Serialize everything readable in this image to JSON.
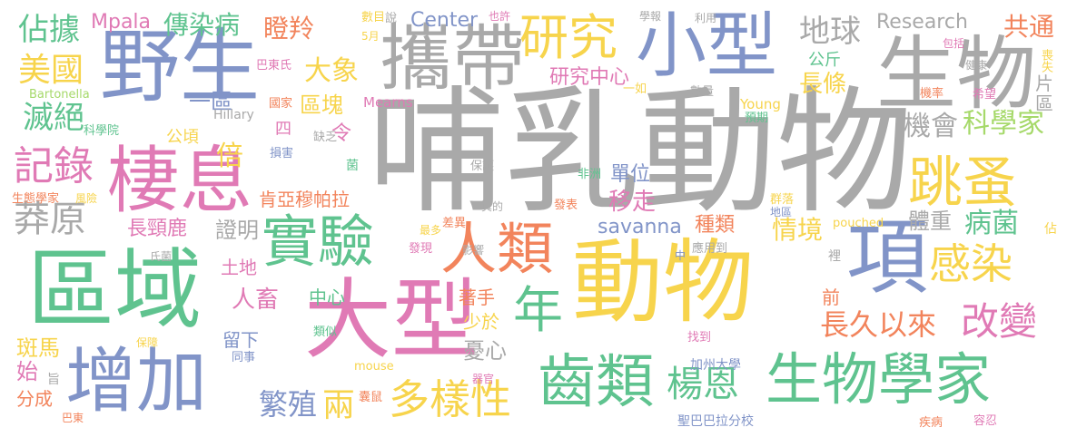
{
  "palette": {
    "gray": "#a9a9a9",
    "yellow": "#f7d44c",
    "green": "#5fc38f",
    "blue": "#8194c8",
    "pink": "#e07ab5",
    "orange": "#f2845c",
    "lime": "#a6d96a"
  },
  "words": [
    {
      "id": "w1",
      "text": "哺乳動物"
    },
    {
      "id": "w2",
      "text": "動物"
    },
    {
      "id": "w3",
      "text": "大型"
    },
    {
      "id": "w4",
      "text": "區域"
    },
    {
      "id": "w5",
      "text": "野生"
    },
    {
      "id": "w6",
      "text": "攜帶"
    },
    {
      "id": "w7",
      "text": "小型"
    },
    {
      "id": "w8",
      "text": "生物"
    },
    {
      "id": "w9",
      "text": "棲息"
    },
    {
      "id": "w10",
      "text": "增加"
    },
    {
      "id": "w11",
      "text": "實驗"
    },
    {
      "id": "w12",
      "text": "人類"
    },
    {
      "id": "w13",
      "text": "項"
    },
    {
      "id": "w14",
      "text": "齒類"
    },
    {
      "id": "w15",
      "text": "生物學家"
    },
    {
      "id": "w16",
      "text": "研究"
    },
    {
      "id": "w17",
      "text": "跳蚤"
    },
    {
      "id": "w18",
      "text": "年"
    },
    {
      "id": "w19",
      "text": "感染"
    },
    {
      "id": "w20",
      "text": "記錄"
    },
    {
      "id": "w21",
      "text": "莽原"
    },
    {
      "id": "w22",
      "text": "多樣性"
    },
    {
      "id": "w23",
      "text": "楊恩"
    },
    {
      "id": "w24",
      "text": "改變"
    },
    {
      "id": "w25",
      "text": "美國"
    },
    {
      "id": "w26",
      "text": "佔據"
    },
    {
      "id": "w27",
      "text": "滅絕"
    },
    {
      "id": "w28",
      "text": "地球"
    },
    {
      "id": "w29",
      "text": "大象"
    },
    {
      "id": "w30",
      "text": "共通"
    },
    {
      "id": "w31",
      "text": "病菌"
    },
    {
      "id": "w32",
      "text": "長久以來"
    },
    {
      "id": "w33",
      "text": "機會"
    },
    {
      "id": "w34",
      "text": "科學家"
    },
    {
      "id": "w35",
      "text": "兩"
    },
    {
      "id": "w36",
      "text": "繁殖"
    },
    {
      "id": "w37",
      "text": "傳染病"
    },
    {
      "id": "w38",
      "text": "瞪羚"
    },
    {
      "id": "w39",
      "text": "Research"
    },
    {
      "id": "w40",
      "text": "Center"
    },
    {
      "id": "w41",
      "text": "Mpala"
    },
    {
      "id": "w42",
      "text": "倍"
    },
    {
      "id": "w43",
      "text": "區塊"
    },
    {
      "id": "w44",
      "text": "一區"
    },
    {
      "id": "w45",
      "text": "研究中心"
    },
    {
      "id": "w46",
      "text": "長條"
    },
    {
      "id": "w47",
      "text": "情境"
    },
    {
      "id": "w48",
      "text": "體重"
    },
    {
      "id": "w49",
      "text": "肯亞穆帕拉"
    },
    {
      "id": "w50",
      "text": "移走"
    },
    {
      "id": "w51",
      "text": "savanna"
    },
    {
      "id": "w52",
      "text": "種類"
    },
    {
      "id": "w53",
      "text": "單位"
    },
    {
      "id": "w54",
      "text": "長頸鹿"
    },
    {
      "id": "w55",
      "text": "證明"
    },
    {
      "id": "w56",
      "text": "人畜"
    },
    {
      "id": "w57",
      "text": "土地"
    },
    {
      "id": "w58",
      "text": "中心"
    },
    {
      "id": "w59",
      "text": "著手"
    },
    {
      "id": "w60",
      "text": "少於"
    },
    {
      "id": "w61",
      "text": "憂心"
    },
    {
      "id": "w62",
      "text": "留下"
    },
    {
      "id": "w63",
      "text": "斑馬"
    },
    {
      "id": "w64",
      "text": "始"
    },
    {
      "id": "w65",
      "text": "分成"
    },
    {
      "id": "w66",
      "text": "加州大學"
    },
    {
      "id": "w67",
      "text": "聖巴巴拉分校"
    },
    {
      "id": "w68",
      "text": "前"
    },
    {
      "id": "w69",
      "text": "公頃"
    },
    {
      "id": "w70",
      "text": "公斤"
    },
    {
      "id": "w71",
      "text": "令"
    },
    {
      "id": "w72",
      "text": "四"
    },
    {
      "id": "w73",
      "text": "Bartonella"
    },
    {
      "id": "w74",
      "text": "巴東氏"
    },
    {
      "id": "w75",
      "text": "國家"
    },
    {
      "id": "w76",
      "text": "Mearns"
    },
    {
      "id": "w77",
      "text": "Hillary"
    },
    {
      "id": "w78",
      "text": "Young"
    },
    {
      "id": "w79",
      "text": "pouched"
    },
    {
      "id": "w80",
      "text": "mouse"
    },
    {
      "id": "w81",
      "text": "科學院"
    },
    {
      "id": "w82",
      "text": "生態學家"
    },
    {
      "id": "w83",
      "text": "風險"
    },
    {
      "id": "w84",
      "text": "損害"
    },
    {
      "id": "w85",
      "text": "缺乏"
    },
    {
      "id": "w86",
      "text": "菌"
    },
    {
      "id": "w87",
      "text": "保護"
    },
    {
      "id": "w88",
      "text": "非洲"
    },
    {
      "id": "w89",
      "text": "一如"
    },
    {
      "id": "w90",
      "text": "數量"
    },
    {
      "id": "w91",
      "text": "機率"
    },
    {
      "id": "w92",
      "text": "希望"
    },
    {
      "id": "w93",
      "text": "預期"
    },
    {
      "id": "w94",
      "text": "健康"
    },
    {
      "id": "w95",
      "text": "包括"
    },
    {
      "id": "w96",
      "text": "喪失"
    },
    {
      "id": "w97",
      "text": "片"
    },
    {
      "id": "w98",
      "text": "區"
    },
    {
      "id": "w99",
      "text": "群落"
    },
    {
      "id": "w100",
      "text": "地區"
    },
    {
      "id": "w101",
      "text": "應用到"
    },
    {
      "id": "w102",
      "text": "佔"
    },
    {
      "id": "w103",
      "text": "發表"
    },
    {
      "id": "w104",
      "text": "真的"
    },
    {
      "id": "w105",
      "text": "差異"
    },
    {
      "id": "w106",
      "text": "最多"
    },
    {
      "id": "w107",
      "text": "發現"
    },
    {
      "id": "w108",
      "text": "影響"
    },
    {
      "id": "w109",
      "text": "中"
    },
    {
      "id": "w110",
      "text": "裡"
    },
    {
      "id": "w111",
      "text": "找到"
    },
    {
      "id": "w112",
      "text": "類似"
    },
    {
      "id": "w113",
      "text": "氏菌"
    },
    {
      "id": "w114",
      "text": "保障"
    },
    {
      "id": "w115",
      "text": "同事"
    },
    {
      "id": "w116",
      "text": "囊鼠"
    },
    {
      "id": "w117",
      "text": "器官"
    },
    {
      "id": "w118",
      "text": "疾病"
    },
    {
      "id": "w119",
      "text": "容忍"
    },
    {
      "id": "w120",
      "text": "巴東"
    },
    {
      "id": "w121",
      "text": "旨"
    },
    {
      "id": "w122",
      "text": "數目"
    },
    {
      "id": "w123",
      "text": "5月"
    },
    {
      "id": "w124",
      "text": "說"
    },
    {
      "id": "w125",
      "text": "也許"
    },
    {
      "id": "w126",
      "text": "學報"
    },
    {
      "id": "w127",
      "text": "利用"
    }
  ]
}
